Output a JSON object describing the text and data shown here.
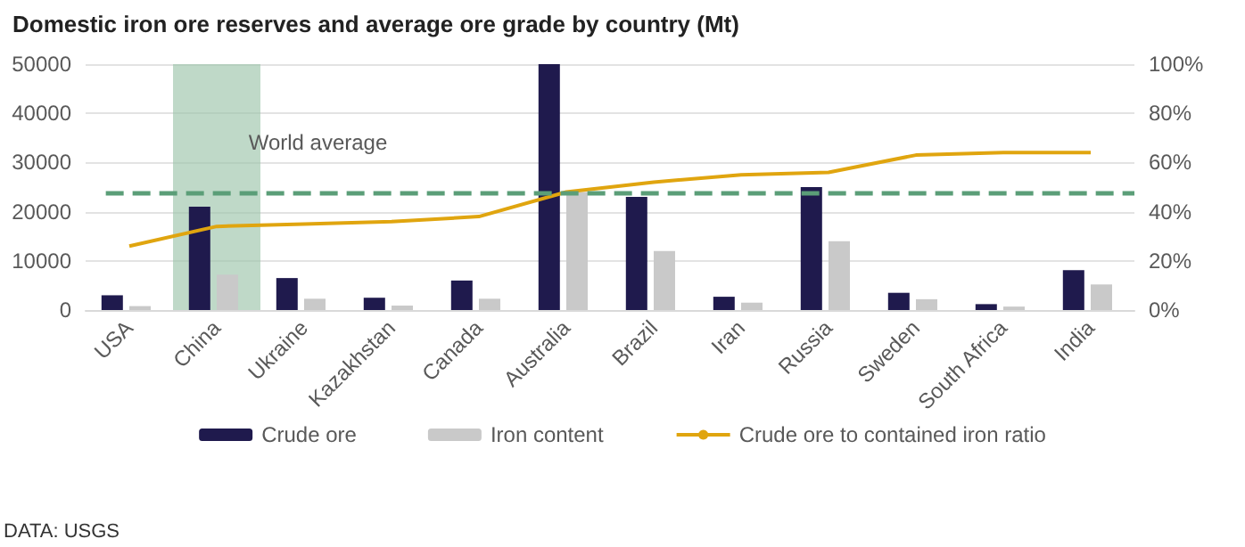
{
  "chart_data": {
    "type": "bar",
    "title": "Domestic iron ore reserves and average ore grade by country (Mt)",
    "categories": [
      "USA",
      "China",
      "Ukraine",
      "Kazakhstan",
      "Canada",
      "Australia",
      "Brazil",
      "Iran",
      "Russia",
      "Sweden",
      "South Africa",
      "India"
    ],
    "series": [
      {
        "name": "Crude ore",
        "color": "#1f1a4d",
        "values": [
          3000,
          21000,
          6500,
          2500,
          6000,
          50000,
          23000,
          2700,
          25000,
          3500,
          1200,
          8100
        ]
      },
      {
        "name": "Iron content",
        "color": "#c9c9c9",
        "values": [
          800,
          7200,
          2300,
          900,
          2300,
          24000,
          12000,
          1500,
          14000,
          2200,
          700,
          5200
        ]
      },
      {
        "name": "Crude ore to contained iron ratio",
        "type": "line",
        "axis": "y2",
        "color": "#e0a50f",
        "values": [
          26,
          34,
          35,
          36,
          38,
          48,
          52,
          55,
          56,
          63,
          64,
          64
        ]
      }
    ],
    "ylim": [
      0,
      50000
    ],
    "yticks": [
      0,
      10000,
      20000,
      30000,
      40000,
      50000
    ],
    "y2lim": [
      0,
      100
    ],
    "y2ticks": [
      {
        "value": 0,
        "label": "0%"
      },
      {
        "value": 20,
        "label": "20%"
      },
      {
        "value": 40,
        "label": "40%"
      },
      {
        "value": 60,
        "label": "60%"
      },
      {
        "value": 80,
        "label": "80%"
      },
      {
        "value": 100,
        "label": "100%"
      }
    ],
    "ref_lines": [
      {
        "axis": "y2",
        "value": 48,
        "label": "World average",
        "color": "#5b9e78",
        "line_style": "dashed"
      }
    ],
    "bands": [
      {
        "axis": "x",
        "from": "China",
        "to": "China",
        "color": "#9cc5ab"
      }
    ],
    "grid": "y",
    "legend": "bottom",
    "marker": "none",
    "annotations": [
      "DATA: USGS"
    ]
  }
}
